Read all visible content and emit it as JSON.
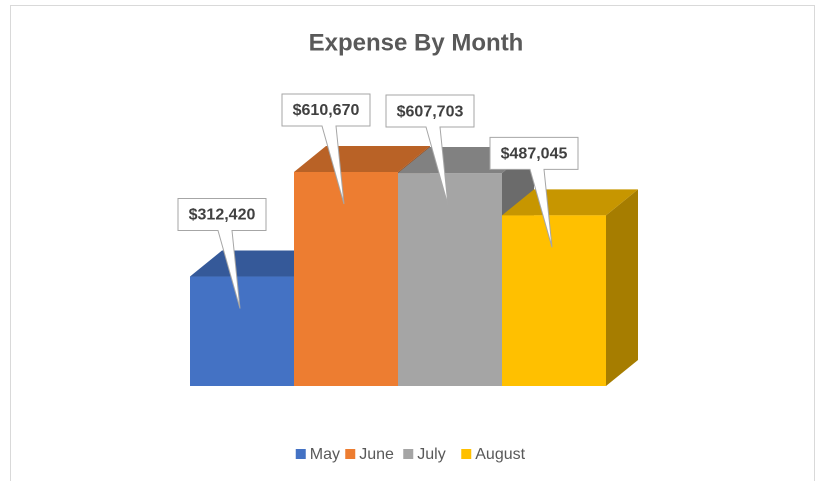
{
  "chart_data": {
    "type": "bar3d",
    "title": "Expense By Month",
    "categories": [
      "May",
      "June",
      "July",
      "August"
    ],
    "values": [
      312420,
      610670,
      607703,
      487045
    ],
    "value_labels": [
      "$312,420",
      "$610,670",
      "$607,703",
      "$487,045"
    ],
    "colors": [
      "#4472c4",
      "#ed7d31",
      "#a5a5a5",
      "#ffc000"
    ],
    "legend": "bottom"
  }
}
